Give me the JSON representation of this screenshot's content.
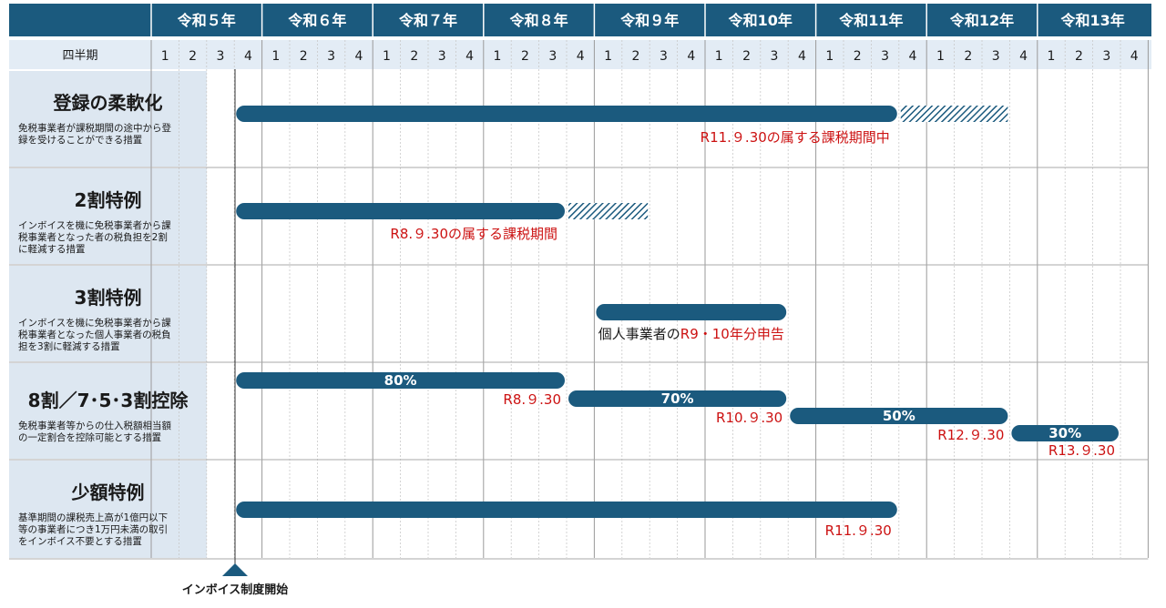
{
  "chart_data": {
    "type": "gantt",
    "colors": {
      "header": "#1b5a7e",
      "subheader": "#e3ecf5",
      "left_panel": "#dde7f1",
      "bar": "#1b5a7e",
      "label_red": "#cc1111",
      "grid": "#c9c9c9",
      "text_dark": "#1a1a1a",
      "text_white": "#ffffff"
    },
    "corner_label": "",
    "years": [
      "令和５年",
      "令和６年",
      "令和７年",
      "令和８年",
      "令和９年",
      "令和10年",
      "令和11年",
      "令和12年",
      "令和13年"
    ],
    "quarter_header": "四半期",
    "quarters": [
      "1",
      "2",
      "3",
      "4"
    ],
    "start_marker": "インボイス制度開始",
    "rows": [
      {
        "title": "登録の柔軟化",
        "description": [
          "免税事業者が課税期間の途中から登",
          "録を受けることができる措置"
        ],
        "bars": [
          {
            "start": "R5 Q4",
            "end": "R11 Q3",
            "label": ""
          },
          {
            "start": "R11 Q4",
            "end": "R12 Q3",
            "label": "",
            "pattern": "hatched"
          }
        ],
        "notes": [
          {
            "text": "R11.９.30の属する課税期間中",
            "color": "red"
          }
        ]
      },
      {
        "title": "2割特例",
        "description": [
          "インボイスを機に免税事業者から課",
          "税事業者となった者の税負担を2割",
          "に軽減する措置"
        ],
        "bars": [
          {
            "start": "R5 Q4",
            "end": "R8 Q3",
            "label": ""
          },
          {
            "start": "R8 Q4",
            "end": "R9 Q2",
            "label": "",
            "pattern": "hatched"
          }
        ],
        "notes": [
          {
            "text": "R8.９.30の属する課税期間",
            "color": "red"
          }
        ]
      },
      {
        "title": "3割特例",
        "description": [
          "インボイスを機に免税事業者から課",
          "税事業者となった個人事業者の税負",
          "担を3割に軽減する措置"
        ],
        "bars": [
          {
            "start": "R9 Q1",
            "end": "R10 Q3",
            "label": ""
          }
        ],
        "notes": [
          {
            "parts": [
              {
                "text": "個人事業者の",
                "color": "dark"
              },
              {
                "text": "R9・10年分申告",
                "color": "red"
              }
            ]
          }
        ]
      },
      {
        "title": "8割／7･5･3割控除",
        "description": [
          "免税事業者等からの仕入税額相当額",
          "の一定割合を控除可能とする措置"
        ],
        "bars": [
          {
            "start": "R5 Q4",
            "end": "R8 Q3",
            "label": "80%",
            "end_note": "R8.９.30"
          },
          {
            "start": "R8 Q4",
            "end": "R10 Q3",
            "label": "70%",
            "end_note": "R10.９.30"
          },
          {
            "start": "R10 Q4",
            "end": "R12 Q3",
            "label": "50%",
            "end_note": "R12.９.30"
          },
          {
            "start": "R12 Q4",
            "end": "R13 Q3",
            "label": "30%",
            "end_note": "R13.９.30"
          }
        ],
        "notes": []
      },
      {
        "title": "少額特例",
        "description": [
          "基準期間の課税売上高が1億円以下",
          "等の事業者につき1万円未満の取引",
          "をインボイス不要とする措置"
        ],
        "bars": [
          {
            "start": "R5 Q4",
            "end": "R11 Q3",
            "label": ""
          }
        ],
        "notes": [
          {
            "text": "R11.９.30",
            "color": "red"
          }
        ]
      }
    ]
  }
}
